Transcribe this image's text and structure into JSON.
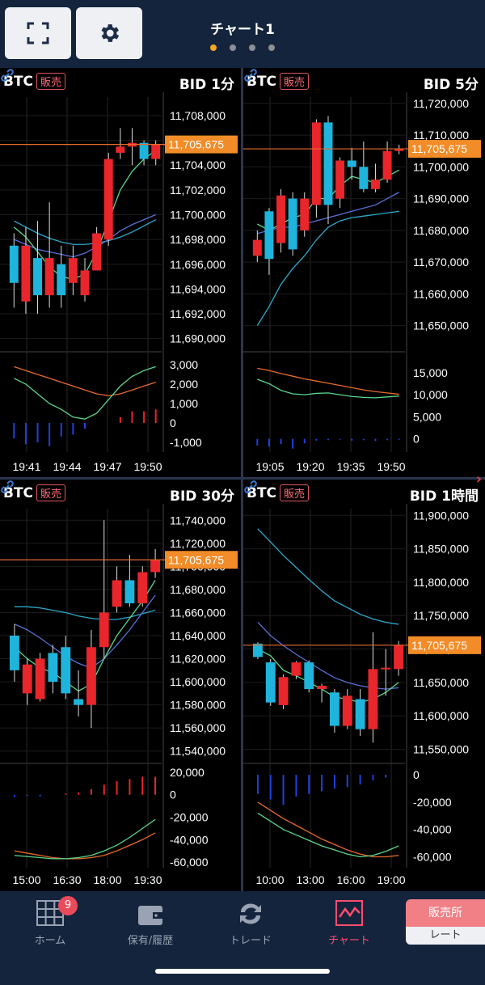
{
  "header": {
    "title": "チャート1",
    "dots": 4,
    "active_dot": 0
  },
  "current_price_label": "11,705,675",
  "colors": {
    "up": "#e8262b",
    "down": "#1fb4dc",
    "price_line": "#e66a2c",
    "price_tag": "#f28c28",
    "accent": "#f5a623"
  },
  "icons": {
    "fullscreen": "fullscreen-icon",
    "settings": "gear-icon",
    "link": "link-icon"
  },
  "panels": [
    {
      "symbol": "BTC",
      "badge": "販売",
      "timeframe": "BID 1分",
      "y_ticks": [
        "11,708,000",
        "11,706,000",
        "11,704,000",
        "11,702,000",
        "11,700,000",
        "11,698,000",
        "11,696,000",
        "11,694,000",
        "11,692,000",
        "11,690,000"
      ],
      "osc_ticks": [
        "3,000",
        "2,000",
        "1,000",
        "0",
        "-1,000"
      ],
      "x_ticks": [
        "19:41",
        "19:44",
        "19:47",
        "19:50"
      ]
    },
    {
      "symbol": "BTC",
      "badge": "販売",
      "timeframe": "BID 5分",
      "y_ticks": [
        "11,720,000",
        "11,710,000",
        "11,700,000",
        "11,690,000",
        "11,680,000",
        "11,670,000",
        "11,660,000",
        "11,650,000"
      ],
      "osc_ticks": [
        "15,000",
        "10,000",
        "5,000",
        "0"
      ],
      "x_ticks": [
        "19:05",
        "19:20",
        "19:35",
        "19:50"
      ]
    },
    {
      "symbol": "BTC",
      "badge": "販売",
      "timeframe": "BID 30分",
      "y_ticks": [
        "11,740,000",
        "11,720,000",
        "11,700,000",
        "11,680,000",
        "11,660,000",
        "11,640,000",
        "11,620,000",
        "11,600,000",
        "11,580,000",
        "11,560,000",
        "11,540,000"
      ],
      "osc_ticks": [
        "20,000",
        "0",
        "-20,000",
        "-40,000",
        "-60,000"
      ],
      "x_ticks": [
        "15:00",
        "16:30",
        "18:00",
        "19:30"
      ]
    },
    {
      "symbol": "BTC",
      "badge": "販売",
      "timeframe": "BID 1時間",
      "y_ticks": [
        "11,900,000",
        "11,850,000",
        "11,800,000",
        "11,750,000",
        "11,700,000",
        "11,650,000",
        "11,600,000",
        "11,550,000"
      ],
      "osc_ticks": [
        "0",
        "-20,000",
        "-40,000",
        "-60,000"
      ],
      "x_ticks": [
        "10:00",
        "13:00",
        "16:00",
        "19:00"
      ]
    }
  ],
  "chart_data": [
    {
      "type": "candlestick",
      "title": "BID 1分",
      "ylim": [
        11689000,
        11709500
      ],
      "current": 11705675,
      "osc_ylim": [
        -1500,
        3500
      ],
      "candles": [
        [
          11697500,
          11694500,
          11698500,
          11692500
        ],
        [
          11693000,
          11697500,
          11699000,
          11692000
        ],
        [
          11696500,
          11693500,
          11699500,
          11692000
        ],
        [
          11693500,
          11696500,
          11701000,
          11692500
        ],
        [
          11696000,
          11693500,
          11697500,
          11692500
        ],
        [
          11694500,
          11696500,
          11697500,
          11693500
        ],
        [
          11693500,
          11695500,
          11696500,
          11693000
        ],
        [
          11695500,
          11698500,
          11699000,
          11695500
        ],
        [
          11698000,
          11704500,
          11705000,
          11697500
        ],
        [
          11705000,
          11705500,
          11707000,
          11704500
        ],
        [
          11705500,
          11705800,
          11707000,
          11704000
        ],
        [
          11705800,
          11704500,
          11706000,
          11704000
        ],
        [
          11704500,
          11705675,
          11706000,
          11704000
        ]
      ],
      "ma_fast": [
        11699000,
        11698200,
        11697000,
        11695800,
        11695000,
        11694800,
        11695200,
        11697000,
        11699500,
        11702000,
        11703500,
        11704500,
        11705200
      ],
      "ma_mid": [
        11698000,
        11697600,
        11697200,
        11697000,
        11696800,
        11696600,
        11696900,
        11697400,
        11698000,
        11698700,
        11699200,
        11699600,
        11700000
      ],
      "ma_slow": [
        11699500,
        11699000,
        11698500,
        11698100,
        11697800,
        11697600,
        11697600,
        11697700,
        11697900,
        11698200,
        11698600,
        11699100,
        11699600
      ],
      "osc_fast": [
        2300,
        2000,
        1500,
        1000,
        700,
        300,
        200,
        500,
        1200,
        1900,
        2400,
        2700,
        2900
      ],
      "osc_slow": [
        2900,
        2700,
        2500,
        2300,
        2100,
        1900,
        1700,
        1500,
        1400,
        1500,
        1700,
        1900,
        2100
      ],
      "hist": [
        -800,
        -1100,
        -1000,
        -1200,
        -700,
        -600,
        -300,
        0,
        0,
        300,
        600,
        600,
        700
      ]
    },
    {
      "type": "candlestick",
      "title": "BID 5分",
      "ylim": [
        11642000,
        11722000
      ],
      "current": 11705675,
      "osc_ylim": [
        -3000,
        19000
      ],
      "candles": [
        [
          11672000,
          11677000,
          11680000,
          11670000
        ],
        [
          11686000,
          11671000,
          11687000,
          11666000
        ],
        [
          11676000,
          11691000,
          11693000,
          11673000
        ],
        [
          11690000,
          11674000,
          11692000,
          11672000
        ],
        [
          11680000,
          11690000,
          11692000,
          11678000
        ],
        [
          11688000,
          11714000,
          11715000,
          11684000
        ],
        [
          11714000,
          11688000,
          11716000,
          11682000
        ],
        [
          11690000,
          11702000,
          11703000,
          11687000
        ],
        [
          11702000,
          11700000,
          11706000,
          11696000
        ],
        [
          11700000,
          11693000,
          11708000,
          11692000
        ],
        [
          11693000,
          11696000,
          11701000,
          11692000
        ],
        [
          11696000,
          11705000,
          11708000,
          11695000
        ],
        [
          11705000,
          11705675,
          11707000,
          11704000
        ]
      ],
      "ma_fast": [
        11682000,
        11680000,
        11682000,
        11684000,
        11685000,
        11690000,
        11690000,
        11694000,
        11697000,
        11696000,
        11695000,
        11697000,
        11699000
      ],
      "ma_mid": [
        11679000,
        11680000,
        11681000,
        11681000,
        11682000,
        11683000,
        11684000,
        11685000,
        11686000,
        11687000,
        11688000,
        11690000,
        11692000
      ],
      "ma_slow": [
        11650000,
        11656000,
        11663000,
        11668000,
        11672000,
        11677000,
        11681000,
        11683000,
        11684000,
        11684500,
        11685000,
        11685500,
        11686000
      ],
      "osc_fast": [
        13500,
        12500,
        11000,
        10200,
        10000,
        10300,
        10400,
        10000,
        9600,
        9400,
        9300,
        9500,
        9700
      ],
      "osc_slow": [
        16000,
        15500,
        14800,
        14200,
        13600,
        13100,
        12600,
        12100,
        11600,
        11100,
        10700,
        10400,
        10100
      ],
      "hist": [
        -1500,
        -1800,
        -1200,
        -2200,
        -1000,
        -400,
        -300,
        -200,
        -400,
        -300,
        -500,
        -300,
        -200
      ]
    },
    {
      "type": "candlestick",
      "title": "BID 30分",
      "ylim": [
        11530000,
        11750000
      ],
      "current": 11705675,
      "osc_ylim": [
        -65000,
        25000
      ],
      "candles": [
        [
          11640000,
          11610000,
          11650000,
          11600000
        ],
        [
          11590000,
          11615000,
          11620000,
          11580000
        ],
        [
          11585000,
          11620000,
          11625000,
          11583000
        ],
        [
          11625000,
          11600000,
          11632000,
          11590000
        ],
        [
          11630000,
          11590000,
          11640000,
          11585000
        ],
        [
          11585000,
          11580000,
          11610000,
          11570000
        ],
        [
          11580000,
          11630000,
          11645000,
          11560000
        ],
        [
          11630000,
          11660000,
          11740000,
          11620000
        ],
        [
          11665000,
          11688000,
          11700000,
          11660000
        ],
        [
          11688000,
          11668000,
          11710000,
          11665000
        ],
        [
          11668000,
          11695000,
          11700000,
          11665000
        ],
        [
          11695000,
          11705675,
          11715000,
          11690000
        ]
      ],
      "ma_fast": [
        11630000,
        11620000,
        11612000,
        11608000,
        11600000,
        11592000,
        11598000,
        11620000,
        11640000,
        11655000,
        11670000,
        11688000
      ],
      "ma_mid": [
        11650000,
        11645000,
        11638000,
        11630000,
        11622000,
        11616000,
        11612000,
        11620000,
        11632000,
        11645000,
        11660000,
        11675000
      ],
      "ma_slow": [
        11665000,
        11665000,
        11664000,
        11662000,
        11660000,
        11657000,
        11655000,
        11654000,
        11654000,
        11656000,
        11659000,
        11662000
      ],
      "osc_fast": [
        -54000,
        -55000,
        -56000,
        -57000,
        -57000,
        -56000,
        -54000,
        -50000,
        -45000,
        -38000,
        -30000,
        -22000
      ],
      "osc_slow": [
        -50000,
        -52000,
        -54000,
        -56000,
        -57000,
        -57000,
        -56000,
        -54000,
        -50000,
        -45000,
        -40000,
        -34000
      ],
      "hist": [
        -2000,
        -1000,
        -1500,
        0,
        1000,
        2000,
        5000,
        9000,
        12000,
        14000,
        16000,
        16000
      ]
    },
    {
      "type": "candlestick",
      "title": "BID 1時間",
      "ylim": [
        11530000,
        11910000
      ],
      "current": 11705675,
      "osc_ylim": [
        -68000,
        6000
      ],
      "candles": [
        [
          11708000,
          11688000,
          11710000,
          11685000
        ],
        [
          11680000,
          11620000,
          11685000,
          11615000
        ],
        [
          11616000,
          11658000,
          11662000,
          11610000
        ],
        [
          11660000,
          11680000,
          11682000,
          11655000
        ],
        [
          11680000,
          11640000,
          11683000,
          11635000
        ],
        [
          11640000,
          11645000,
          11648000,
          11620000
        ],
        [
          11635000,
          11585000,
          11640000,
          11575000
        ],
        [
          11585000,
          11630000,
          11640000,
          11580000
        ],
        [
          11625000,
          11580000,
          11640000,
          11570000
        ],
        [
          11580000,
          11670000,
          11725000,
          11560000
        ],
        [
          11670000,
          11672000,
          11700000,
          11630000
        ],
        [
          11670000,
          11705675,
          11712000,
          11660000
        ]
      ],
      "ma_fast": [
        11700000,
        11690000,
        11668000,
        11660000,
        11650000,
        11640000,
        11628000,
        11625000,
        11620000,
        11625000,
        11635000,
        11650000
      ],
      "ma_mid": [
        11740000,
        11720000,
        11705000,
        11692000,
        11680000,
        11668000,
        11657000,
        11650000,
        11645000,
        11642000,
        11640000,
        11642000
      ],
      "ma_slow": [
        11880000,
        11860000,
        11840000,
        11822000,
        11804000,
        11787000,
        11772000,
        11762000,
        11752000,
        11745000,
        11740000,
        11737000
      ],
      "osc_fast": [
        -28000,
        -34000,
        -40000,
        -44000,
        -48000,
        -52000,
        -55000,
        -58000,
        -60000,
        -59000,
        -56000,
        -52000
      ],
      "osc_slow": [
        -20000,
        -26000,
        -32000,
        -37000,
        -42000,
        -47000,
        -51000,
        -55000,
        -58000,
        -60000,
        -60000,
        -59000
      ],
      "hist": [
        -14000,
        -18000,
        -22000,
        -16000,
        -14000,
        -12000,
        -10000,
        -9000,
        -7000,
        -4000,
        -2000,
        0
      ]
    }
  ],
  "nav": {
    "items": [
      {
        "label": "ホーム",
        "icon": "home-grid-icon",
        "badge": "9"
      },
      {
        "label": "保有/履歴",
        "icon": "wallet-icon"
      },
      {
        "label": "トレード",
        "icon": "trade-cycle-icon"
      },
      {
        "label": "チャート",
        "icon": "chart-icon"
      }
    ],
    "sales": {
      "top": "販売所",
      "bottom": "レート"
    }
  }
}
